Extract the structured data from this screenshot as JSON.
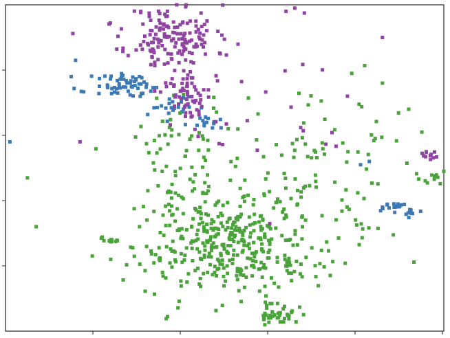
{
  "chart_data": {
    "type": "scatter",
    "title": "",
    "xlabel": "",
    "ylabel": "",
    "xlim": [
      0,
      100
    ],
    "ylim": [
      0,
      100
    ],
    "grid": false,
    "legend": "none",
    "colors": [
      "#3b78b4",
      "#8e44a0",
      "#4aa23a"
    ],
    "clusters": [
      {
        "series": 1,
        "cx": 38,
        "cy": 90,
        "sx": 5,
        "sy": 5,
        "n": 150,
        "seed": 11
      },
      {
        "series": 1,
        "cx": 42,
        "cy": 72,
        "sx": 3,
        "sy": 4,
        "n": 60,
        "seed": 12
      },
      {
        "series": 1,
        "cx": 97,
        "cy": 54,
        "sx": 1.2,
        "sy": 1,
        "n": 10,
        "seed": 13
      },
      {
        "series": 1,
        "cx": 62,
        "cy": 75,
        "sx": 16,
        "sy": 13,
        "n": 30,
        "seed": 14
      },
      {
        "series": 0,
        "cx": 28,
        "cy": 75,
        "sx": 4,
        "sy": 1.8,
        "n": 60,
        "seed": 21
      },
      {
        "series": 0,
        "cx": 38,
        "cy": 68,
        "sx": 3,
        "sy": 2.5,
        "n": 25,
        "seed": 22
      },
      {
        "series": 0,
        "cx": 47,
        "cy": 64,
        "sx": 1.5,
        "sy": 1,
        "n": 12,
        "seed": 23
      },
      {
        "series": 0,
        "cx": 88,
        "cy": 38,
        "sx": 1.5,
        "sy": 0.7,
        "n": 15,
        "seed": 24
      },
      {
        "series": 0,
        "cx": 93,
        "cy": 36,
        "sx": 1,
        "sy": 0.6,
        "n": 8,
        "seed": 25
      },
      {
        "series": 2,
        "cx": 50,
        "cy": 27,
        "sx": 10,
        "sy": 8,
        "n": 380,
        "seed": 31
      },
      {
        "series": 2,
        "cx": 40,
        "cy": 56,
        "sx": 7,
        "sy": 8,
        "n": 60,
        "seed": 32
      },
      {
        "series": 2,
        "cx": 70,
        "cy": 45,
        "sx": 10,
        "sy": 14,
        "n": 110,
        "seed": 33
      },
      {
        "series": 2,
        "cx": 62,
        "cy": 5,
        "sx": 2.5,
        "sy": 2,
        "n": 40,
        "seed": 34
      },
      {
        "series": 2,
        "cx": 24,
        "cy": 28,
        "sx": 1.2,
        "sy": 1.2,
        "n": 12,
        "seed": 35
      },
      {
        "series": 2,
        "cx": 97,
        "cy": 47,
        "sx": 2,
        "sy": 1,
        "n": 10,
        "seed": 36
      }
    ],
    "extra_points": [
      {
        "series": 0,
        "x": 1,
        "y": 58
      },
      {
        "series": 0,
        "x": 16,
        "y": 83
      },
      {
        "series": 0,
        "x": 15,
        "y": 78
      },
      {
        "series": 0,
        "x": 86,
        "y": 38
      },
      {
        "series": 0,
        "x": 83,
        "y": 52
      },
      {
        "series": 0,
        "x": 81,
        "y": 51
      },
      {
        "series": 2,
        "x": 5,
        "y": 47
      },
      {
        "series": 2,
        "x": 7,
        "y": 32
      },
      {
        "series": 2,
        "x": 24,
        "y": 22
      },
      {
        "series": 2,
        "x": 79,
        "y": 79
      },
      {
        "series": 2,
        "x": 86,
        "y": 76
      },
      {
        "series": 2,
        "x": 92,
        "y": 68
      },
      {
        "series": 2,
        "x": 95,
        "y": 61
      },
      {
        "series": 2,
        "x": 100,
        "y": 49
      },
      {
        "series": 1,
        "x": 66,
        "y": 99
      },
      {
        "series": 1,
        "x": 64,
        "y": 98
      },
      {
        "series": 1,
        "x": 78,
        "y": 72
      },
      {
        "series": 1,
        "x": 86,
        "y": 90
      },
      {
        "series": 1,
        "x": 96,
        "y": 55
      },
      {
        "series": 1,
        "x": 17,
        "y": 58
      }
    ]
  }
}
